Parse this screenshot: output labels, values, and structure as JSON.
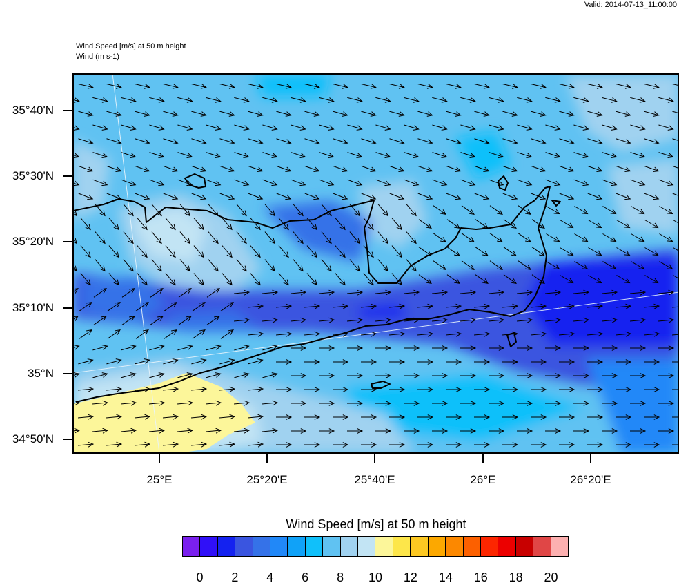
{
  "header": {
    "valid": "Valid: 2014-07-13_11:00:00",
    "title_line1": "Wind Speed [m/s] at 50 m height",
    "title_line2": "Wind   (m s-1)"
  },
  "axes": {
    "y_ticks": [
      "35°40'N",
      "35°30'N",
      "35°20'N",
      "35°10'N",
      "35°N",
      "34°50'N"
    ],
    "x_ticks": [
      "25°E",
      "25°20'E",
      "25°40'E",
      "26°E",
      "26°20'E"
    ]
  },
  "legend": {
    "title": "Wind Speed [m/s] at 50 m height",
    "labels": [
      "0",
      "2",
      "4",
      "6",
      "8",
      "10",
      "12",
      "14",
      "16",
      "18",
      "20"
    ],
    "colors": [
      "#7a20ee",
      "#3010f8",
      "#1422f0",
      "#3a55e0",
      "#3572e8",
      "#2188f8",
      "#10a2f8",
      "#10c0fa",
      "#60c2f2",
      "#a0d2f0",
      "#c2e4f4",
      "#fcf69a",
      "#fde64a",
      "#fcc822",
      "#fca800",
      "#fc8800",
      "#fc6000",
      "#fc2600",
      "#ec0000",
      "#c80000",
      "#e04646",
      "#fcb0b0"
    ]
  }
}
